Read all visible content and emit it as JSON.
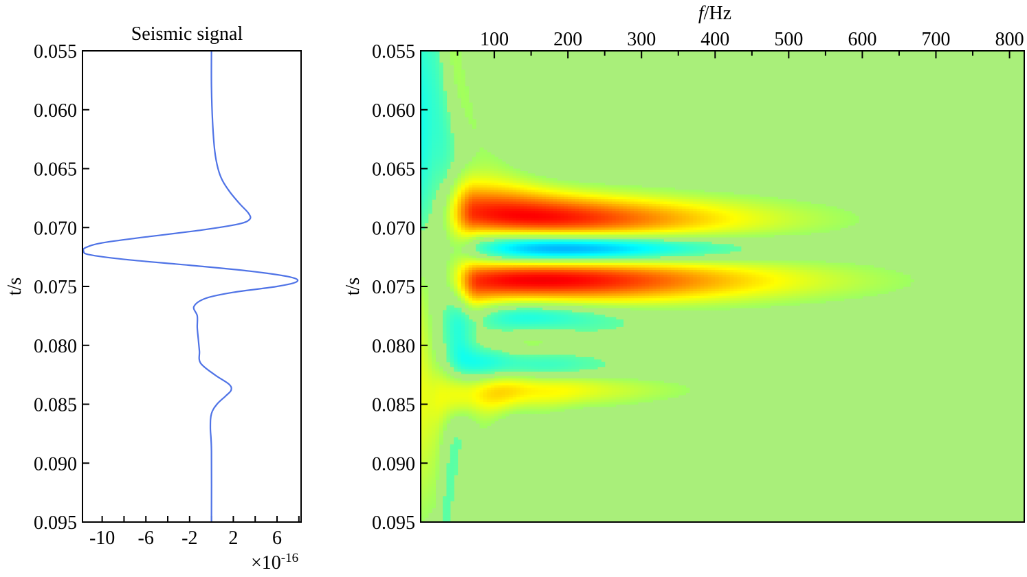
{
  "chart_data": [
    {
      "type": "line",
      "title": "Seismic signal",
      "ylabel": "t/s",
      "xlabel": "",
      "x_exponent_label": "×10",
      "x_exponent_power": "-16",
      "xlim": [
        -11.8,
        8.2
      ],
      "ylim": [
        0.055,
        0.095
      ],
      "y_inverted": true,
      "xticks": [
        -10,
        -6,
        -2,
        2,
        6
      ],
      "xtick_labels": [
        "-10",
        "-6",
        "-2",
        "2",
        "6"
      ],
      "yticks": [
        0.055,
        0.06,
        0.065,
        0.07,
        0.075,
        0.08,
        0.085,
        0.09,
        0.095
      ],
      "ytick_labels": [
        "0.055",
        "0.060",
        "0.065",
        "0.070",
        "0.075",
        "0.080",
        "0.085",
        "0.090",
        "0.095"
      ],
      "line_color": "#4f73e6",
      "series": [
        {
          "t": [
            0.055,
            0.058,
            0.061,
            0.0635,
            0.065,
            0.066,
            0.067,
            0.068,
            0.0688,
            0.0693,
            0.0697,
            0.0702,
            0.0708,
            0.0713,
            0.0717,
            0.072,
            0.0723,
            0.0727,
            0.0732,
            0.0737,
            0.0742,
            0.0746,
            0.075,
            0.0755,
            0.076,
            0.0767,
            0.0775,
            0.0785,
            0.0795,
            0.0805,
            0.0815,
            0.0825,
            0.0833,
            0.0838,
            0.0843,
            0.085,
            0.0858,
            0.087,
            0.089,
            0.095
          ],
          "amplitude": [
            0.0,
            0.0,
            0.1,
            0.3,
            0.6,
            1.0,
            1.7,
            2.6,
            3.4,
            3.5,
            2.5,
            -0.8,
            -6.0,
            -10.0,
            -11.5,
            -11.7,
            -11.2,
            -8.0,
            -2.0,
            3.5,
            7.2,
            7.8,
            6.0,
            2.0,
            -0.5,
            -1.6,
            -1.3,
            -1.3,
            -1.2,
            -1.1,
            -1.0,
            0.3,
            1.6,
            1.8,
            1.3,
            0.5,
            0.0,
            -0.1,
            0.0,
            0.0
          ]
        }
      ]
    },
    {
      "type": "heatmap",
      "xlabel_italic": "f",
      "xlabel_rest": "/Hz",
      "ylabel": "t/s",
      "xlim": [
        0,
        820
      ],
      "ylim": [
        0.055,
        0.095
      ],
      "y_inverted": true,
      "x_axis_position": "top",
      "xticks": [
        100,
        200,
        300,
        400,
        500,
        600,
        700,
        800
      ],
      "xtick_labels": [
        "100",
        "200",
        "300",
        "400",
        "500",
        "600",
        "700",
        "800"
      ],
      "yticks": [
        0.055,
        0.06,
        0.065,
        0.07,
        0.075,
        0.08,
        0.085,
        0.09,
        0.095
      ],
      "ytick_labels": [
        "0.055",
        "0.060",
        "0.065",
        "0.070",
        "0.075",
        "0.080",
        "0.085",
        "0.090",
        "0.095"
      ],
      "colormap": "jet",
      "background_color": "#a9ef7a",
      "color_range": [
        -1,
        1
      ],
      "features": [
        {
          "t": 0.0693,
          "f_center": 75,
          "f_extent": 580,
          "t_width": 0.0018,
          "value": 0.85
        },
        {
          "t": 0.0718,
          "f_center": 80,
          "f_extent": 470,
          "t_width": 0.0012,
          "value": -0.9
        },
        {
          "t": 0.0745,
          "f_center": 80,
          "f_extent": 650,
          "t_width": 0.0018,
          "value": 0.9
        },
        {
          "t": 0.0775,
          "f_center": 60,
          "f_extent": 300,
          "t_width": 0.0018,
          "value": -0.55
        },
        {
          "t": 0.0792,
          "f_center": 90,
          "f_extent": 200,
          "t_width": 0.0012,
          "value": 0.35
        },
        {
          "t": 0.0818,
          "f_center": 60,
          "f_extent": 320,
          "t_width": 0.001,
          "value": -0.25
        },
        {
          "t": 0.0838,
          "f_center": 60,
          "f_extent": 420,
          "t_width": 0.0012,
          "value": 0.35
        }
      ]
    }
  ]
}
